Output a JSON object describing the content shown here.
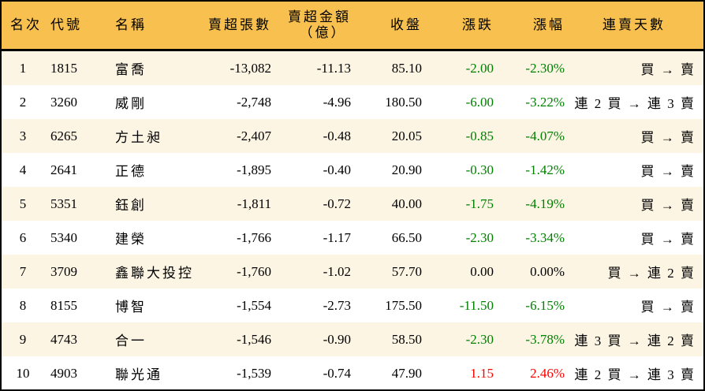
{
  "colors": {
    "header_bg": "#f8c04f",
    "row_alt_bg": "#fdf5e3",
    "down": "#008000",
    "up": "#ff0000"
  },
  "headers": {
    "rank": "名次",
    "code": "代號",
    "name": "名稱",
    "net_sell_lots": "賣超張數",
    "net_sell_amount": "賣超金額",
    "net_sell_amount_unit": "（億）",
    "close": "收盤",
    "change": "漲跌",
    "change_pct": "漲幅",
    "consecutive_days": "連賣天數"
  },
  "rows": [
    {
      "rank": "1",
      "code": "1815",
      "name": "富喬",
      "lots": "-13,082",
      "amount": "-11.13",
      "close": "85.10",
      "change": "-2.00",
      "pct": "-2.30%",
      "days": "買 → 賣",
      "dir": "down"
    },
    {
      "rank": "2",
      "code": "3260",
      "name": "威剛",
      "lots": "-2,748",
      "amount": "-4.96",
      "close": "180.50",
      "change": "-6.00",
      "pct": "-3.22%",
      "days": "連 2 買 → 連 3 賣",
      "dir": "down"
    },
    {
      "rank": "3",
      "code": "6265",
      "name": "方土昶",
      "lots": "-2,407",
      "amount": "-0.48",
      "close": "20.05",
      "change": "-0.85",
      "pct": "-4.07%",
      "days": "買 → 賣",
      "dir": "down"
    },
    {
      "rank": "4",
      "code": "2641",
      "name": "正德",
      "lots": "-1,895",
      "amount": "-0.40",
      "close": "20.90",
      "change": "-0.30",
      "pct": "-1.42%",
      "days": "買 → 賣",
      "dir": "down"
    },
    {
      "rank": "5",
      "code": "5351",
      "name": "鈺創",
      "lots": "-1,811",
      "amount": "-0.72",
      "close": "40.00",
      "change": "-1.75",
      "pct": "-4.19%",
      "days": "買 → 賣",
      "dir": "down"
    },
    {
      "rank": "6",
      "code": "5340",
      "name": "建榮",
      "lots": "-1,766",
      "amount": "-1.17",
      "close": "66.50",
      "change": "-2.30",
      "pct": "-3.34%",
      "days": "買 → 賣",
      "dir": "down"
    },
    {
      "rank": "7",
      "code": "3709",
      "name": "鑫聯大投控",
      "lots": "-1,760",
      "amount": "-1.02",
      "close": "57.70",
      "change": "0.00",
      "pct": "0.00%",
      "days": "買 → 連 2 賣",
      "dir": "flat"
    },
    {
      "rank": "8",
      "code": "8155",
      "name": "博智",
      "lots": "-1,554",
      "amount": "-2.73",
      "close": "175.50",
      "change": "-11.50",
      "pct": "-6.15%",
      "days": "買 → 賣",
      "dir": "down"
    },
    {
      "rank": "9",
      "code": "4743",
      "name": "合一",
      "lots": "-1,546",
      "amount": "-0.90",
      "close": "58.50",
      "change": "-2.30",
      "pct": "-3.78%",
      "days": "連 3 買 → 連 2 賣",
      "dir": "down"
    },
    {
      "rank": "10",
      "code": "4903",
      "name": "聯光通",
      "lots": "-1,539",
      "amount": "-0.74",
      "close": "47.90",
      "change": "1.15",
      "pct": "2.46%",
      "days": "連 2 買 → 連 3 賣",
      "dir": "up"
    }
  ]
}
